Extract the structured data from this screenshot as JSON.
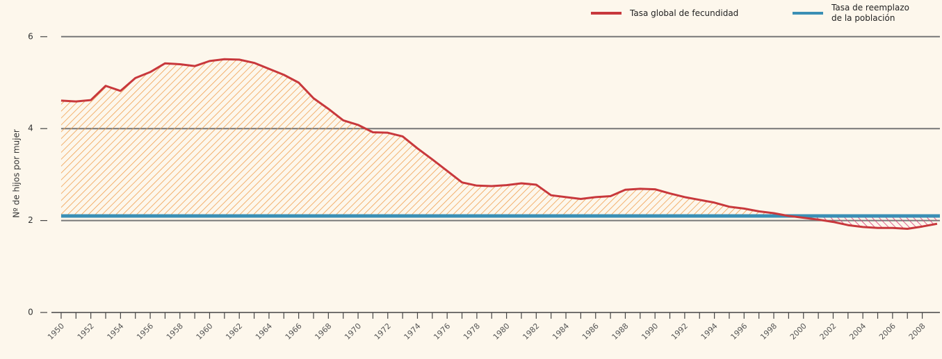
{
  "chart_data": {
    "type": "line",
    "y_label": "Nº de hijos por mujer",
    "x": [
      1950,
      1951,
      1952,
      1953,
      1954,
      1955,
      1956,
      1957,
      1958,
      1959,
      1960,
      1961,
      1962,
      1963,
      1964,
      1965,
      1966,
      1967,
      1968,
      1969,
      1970,
      1971,
      1972,
      1973,
      1974,
      1975,
      1976,
      1977,
      1978,
      1979,
      1980,
      1981,
      1982,
      1983,
      1984,
      1985,
      1986,
      1987,
      1988,
      1989,
      1990,
      1991,
      1992,
      1993,
      1994,
      1995,
      1996,
      1997,
      1998,
      1999,
      2000,
      2001,
      2002,
      2003,
      2004,
      2005,
      2006,
      2007,
      2008,
      2009
    ],
    "series": [
      {
        "name": "Tasa global de fecundidad",
        "color": "#c8383c",
        "values": [
          4.61,
          4.59,
          4.62,
          4.93,
          4.82,
          5.1,
          5.23,
          5.42,
          5.4,
          5.36,
          5.47,
          5.51,
          5.5,
          5.43,
          5.3,
          5.17,
          5.0,
          4.66,
          4.43,
          4.18,
          4.08,
          3.92,
          3.91,
          3.83,
          3.57,
          3.33,
          3.08,
          2.83,
          2.76,
          2.75,
          2.77,
          2.81,
          2.78,
          2.55,
          2.51,
          2.47,
          2.51,
          2.53,
          2.67,
          2.69,
          2.68,
          2.59,
          2.51,
          2.45,
          2.39,
          2.3,
          2.26,
          2.2,
          2.16,
          2.1,
          2.06,
          2.02,
          1.97,
          1.9,
          1.86,
          1.84,
          1.84,
          1.82,
          1.87,
          1.93
        ]
      }
    ],
    "reference": {
      "name": "Tasa de reemplazo de la población",
      "color": "#3a8fb5",
      "value": 2.1
    },
    "above_color": "#f0a050",
    "below_color": "#d83a78",
    "xlim": [
      1949.16,
      2009.19
    ],
    "xticks": [
      1950,
      1952,
      1954,
      1956,
      1958,
      1960,
      1962,
      1964,
      1966,
      1968,
      1970,
      1972,
      1974,
      1976,
      1978,
      1980,
      1982,
      1984,
      1986,
      1988,
      1990,
      1992,
      1994,
      1996,
      1998,
      2000,
      2002,
      2004,
      2006,
      2008
    ],
    "ylim": [
      0,
      6
    ],
    "yticks": [
      0,
      2,
      4,
      6
    ],
    "grid": true,
    "legend": "top-right"
  }
}
